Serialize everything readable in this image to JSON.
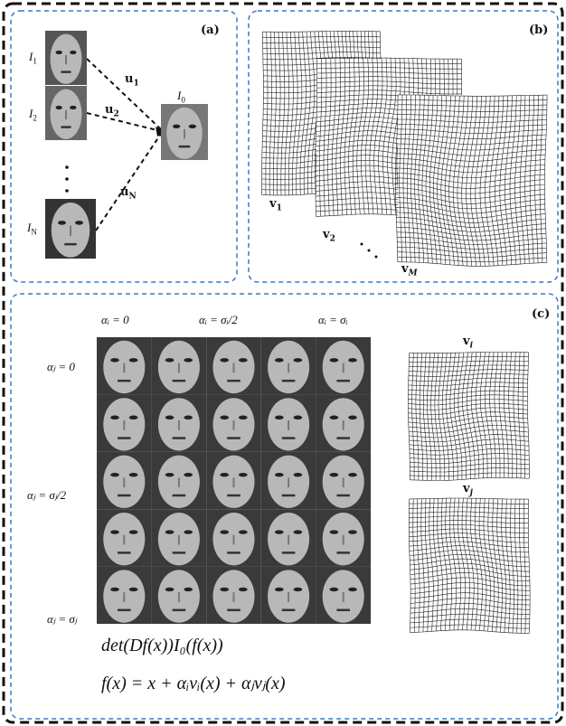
{
  "panel_a": {
    "tag": "(a)",
    "faces": [
      {
        "base": "I",
        "sub": "1"
      },
      {
        "base": "I",
        "sub": "2"
      },
      {
        "base": "I",
        "sub": "N"
      }
    ],
    "mean": {
      "base": "I",
      "sub": "0"
    },
    "arrows": [
      {
        "base": "u",
        "sub": "1"
      },
      {
        "base": "u",
        "sub": "2"
      },
      {
        "base": "u",
        "sub": "N"
      }
    ]
  },
  "panel_b": {
    "tag": "(b)",
    "fields": [
      {
        "base": "v",
        "sub": "1"
      },
      {
        "base": "v",
        "sub": "2"
      },
      {
        "base": "v",
        "sub": "M"
      }
    ]
  },
  "panel_c": {
    "tag": "(c)",
    "columns": [
      "αᵢ = 0",
      "αᵢ = σᵢ/2",
      "αᵢ = σᵢ"
    ],
    "rows": [
      "αⱼ = 0",
      "αⱼ = σⱼ/2",
      "αⱼ = σⱼ"
    ],
    "fields": [
      {
        "base": "v",
        "sub": "i"
      },
      {
        "base": "v",
        "sub": "j"
      }
    ],
    "formulas": [
      "det(Df(x))I₀(f(x))",
      "f(x) = x + αᵢvᵢ(x) + αⱼvⱼ(x)"
    ]
  }
}
